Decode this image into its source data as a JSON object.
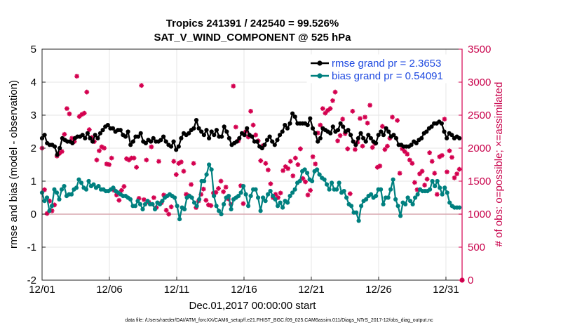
{
  "chart_data": {
    "type": "line",
    "title_line1": "Tropics 241391 / 242540 = 99.526%",
    "title_line2": "SAT_V_WIND_COMPONENT @ 525 hPa",
    "xlabel": "Dec.01,2017 00:00:00 start",
    "ylabel_left": "rmse and bias (model - observation)",
    "ylabel_right": "# of obs: o=possible; ×=assimilated",
    "footnote": "data file: /Users/raeder/DAI/ATM_forcXX/CAM6_setup/f.e21.FHIST_BGC.f09_025.CAM6assim.011/Diags_NTrS_2017-12/obs_diag_output.nc",
    "xlim": [
      1,
      32.2
    ],
    "ylim_left": [
      -2,
      5
    ],
    "ylim_right": [
      0,
      3500
    ],
    "x_tick_values": [
      1,
      6,
      11,
      16,
      21,
      26,
      31
    ],
    "x_tick_labels": [
      "12/01",
      "12/06",
      "12/11",
      "12/16",
      "12/21",
      "12/26",
      "12/31"
    ],
    "y_left_ticks": [
      -2,
      -1,
      0,
      1,
      2,
      3,
      4,
      5
    ],
    "y_right_ticks": [
      0,
      500,
      1000,
      1500,
      2000,
      2500,
      3000,
      3500
    ],
    "legend": [
      "rmse grand pr = 2.3653",
      "bias grand pr = 0.54091"
    ],
    "colors": {
      "rmse": "#000000",
      "bias": "#00807f",
      "obs": "#d4004f",
      "zero_line": "#d9a8b0",
      "grid": "#e6e6e6"
    },
    "series": [
      {
        "name": "rmse",
        "values": [
          2.3,
          2.4,
          2.15,
          2.1,
          2.1,
          2.05,
          1.8,
          2.0,
          2.3,
          2.25,
          2.2,
          2.2,
          2.15,
          2.3,
          2.35,
          2.35,
          2.4,
          2.3,
          2.45,
          2.3,
          2.2,
          2.4,
          2.3,
          2.45,
          2.55,
          2.65,
          2.7,
          2.6,
          2.6,
          2.5,
          2.55,
          2.55,
          2.4,
          2.35,
          2.5,
          2.1,
          2.2,
          2.35,
          2.35,
          2.45,
          2.2,
          2.15,
          2.25,
          2.2,
          2.3,
          2.2,
          2.2,
          2.25,
          2.35,
          2.2,
          2.1,
          2.05,
          2.2,
          1.95,
          2.05,
          2.3,
          2.45,
          2.4,
          2.45,
          2.55,
          2.6,
          2.85,
          2.6,
          2.5,
          2.4,
          2.55,
          2.3,
          2.5,
          2.4,
          2.55,
          2.35,
          2.35,
          2.65,
          2.5,
          2.3,
          2.1,
          2.15,
          2.2,
          2.3,
          2.45,
          2.4,
          2.6,
          2.4,
          2.35,
          2.2,
          2.2,
          2.05,
          2.0,
          2.1,
          2.25,
          2.35,
          2.2,
          2.1,
          2.25,
          2.4,
          2.5,
          2.7,
          2.6,
          2.75,
          3.05,
          2.95,
          2.75,
          2.75,
          2.75,
          2.75,
          2.7,
          2.9,
          2.6,
          2.45,
          2.2,
          2.3,
          2.6,
          2.55,
          2.5,
          2.45,
          2.65,
          2.5,
          2.55,
          2.75,
          2.65,
          2.5,
          2.55,
          2.4,
          2.2,
          2.1,
          2.3,
          2.45,
          2.3,
          2.2,
          2.4,
          2.3,
          2.2,
          2.15,
          2.4,
          2.5,
          2.4,
          2.6,
          2.5,
          2.35,
          2.4,
          2.3,
          2.1,
          2.1,
          2.05,
          2.05,
          2.05,
          2.1,
          2.2,
          2.15,
          2.25,
          2.3,
          2.45,
          2.5,
          2.6,
          2.65,
          2.75,
          2.75,
          2.8,
          2.75,
          2.5,
          2.3,
          2.45,
          2.4,
          2.3,
          2.35,
          2.3
        ]
      },
      {
        "name": "bias",
        "values": [
          0.65,
          0.4,
          0.5,
          0.1,
          0.25,
          0.75,
          0.65,
          0.45,
          0.75,
          0.85,
          0.55,
          0.6,
          0.6,
          0.75,
          0.8,
          1.05,
          0.95,
          0.8,
          0.75,
          1.0,
          0.85,
          0.9,
          0.8,
          0.85,
          0.75,
          0.75,
          0.7,
          0.7,
          0.75,
          0.8,
          0.7,
          0.65,
          0.6,
          0.55,
          0.55,
          0.5,
          0.45,
          0.25,
          0.25,
          0.4,
          0.3,
          0.15,
          0.3,
          0.4,
          0.3,
          0.3,
          0.15,
          0.35,
          0.3,
          0.4,
          0.5,
          0.55,
          0.6,
          0.55,
          0.5,
          0.25,
          -0.15,
          0.2,
          0.15,
          0.5,
          0.55,
          0.5,
          0.35,
          0.25,
          0.45,
          1.0,
          1.0,
          1.2,
          1.5,
          1.35,
          0.55,
          0.25,
          0.1,
          0.0,
          0.3,
          0.5,
          0.55,
          0.15,
          0.45,
          0.5,
          0.55,
          0.65,
          0.85,
          0.6,
          0.25,
          0.55,
          0.75,
          0.75,
          0.5,
          0.1,
          0.5,
          0.4,
          0.6,
          0.7,
          0.55,
          0.45,
          0.25,
          0.35,
          0.2,
          0.4,
          0.35,
          0.55,
          0.65,
          0.75,
          0.95,
          1.0,
          1.3,
          1.35,
          1.25,
          1.05,
          1.0,
          1.3,
          1.35,
          1.2,
          1.1,
          1.05,
          0.9,
          0.75,
          0.95,
          0.75,
          0.75,
          0.95,
          0.65,
          0.7,
          0.5,
          0.3,
          0.25,
          0.05,
          0.05,
          -0.2,
          0.25,
          0.4,
          0.45,
          0.55,
          0.6,
          0.5,
          0.55,
          0.75,
          0.75,
          0.3,
          0.5,
          0.5,
          0.75,
          1.05,
          0.45,
          0.25,
          -0.05,
          0.35,
          0.3,
          0.5,
          0.4,
          0.3,
          0.5,
          0.6,
          0.75,
          0.7,
          0.7,
          0.7,
          0.75,
          1.0,
          0.85,
          1.0,
          0.8,
          0.6,
          0.8,
          0.65,
          0.35,
          0.25,
          0.2,
          0.2,
          0.2
        ]
      },
      {
        "name": "obs_assimilated",
        "values": [
          2000,
          1370,
          1010,
          1200,
          1050,
          1140,
          1880,
          1920,
          1950,
          2210,
          2600,
          2520,
          2150,
          2100,
          3090,
          2480,
          2510,
          2530,
          2850,
          2280,
          2160,
          2100,
          1820,
          1960,
          2020,
          2000,
          1760,
          1750,
          1850,
          1360,
          1290,
          1210,
          1360,
          1420,
          1840,
          1820,
          1850,
          1850,
          1710,
          1240,
          2950,
          1220,
          1820,
          1180,
          2020,
          1250,
          1100,
          1800,
          1170,
          1290,
          1060,
          1000,
          1110,
          1800,
          1600,
          1770,
          1790,
          1650,
          1300,
          1280,
          1450,
          1770,
          1100,
          1200,
          1300,
          1380,
          1210,
          1140,
          1130,
          1320,
          1330,
          1390,
          1500,
          1340,
          1410,
          1230,
          1150,
          2940,
          2320,
          2110,
          1430,
          1160,
          2250,
          2170,
          2560,
          2350,
          2200,
          2110,
          1810,
          2040,
          1770,
          1670,
          1460,
          1250,
          1300,
          1250,
          1320,
          1660,
          1720,
          1690,
          1800,
          1580,
          1850,
          1750,
          1990,
          1540,
          1490,
          1290,
          1360,
          1870,
          1760,
          2230,
          2350,
          2600,
          2530,
          2570,
          2600,
          2720,
          2850,
          2110,
          2190,
          2440,
          2220,
          1990,
          1310,
          2560,
          1980,
          2090,
          2450,
          2030,
          2470,
          2380,
          2650,
          2010,
          2070,
          1710,
          1730,
          2330,
          1980,
          2030,
          2150,
          2470,
          3180,
          2420,
          1620,
          1990,
          1950,
          1910,
          1820,
          1770,
          1480,
          1370,
          1610,
          1650,
          1440,
          1530,
          1930,
          1800,
          1620,
          1300,
          1870,
          1890,
          2440,
          1640,
          1960,
          1860,
          1550,
          1610,
          1680
        ]
      }
    ]
  }
}
